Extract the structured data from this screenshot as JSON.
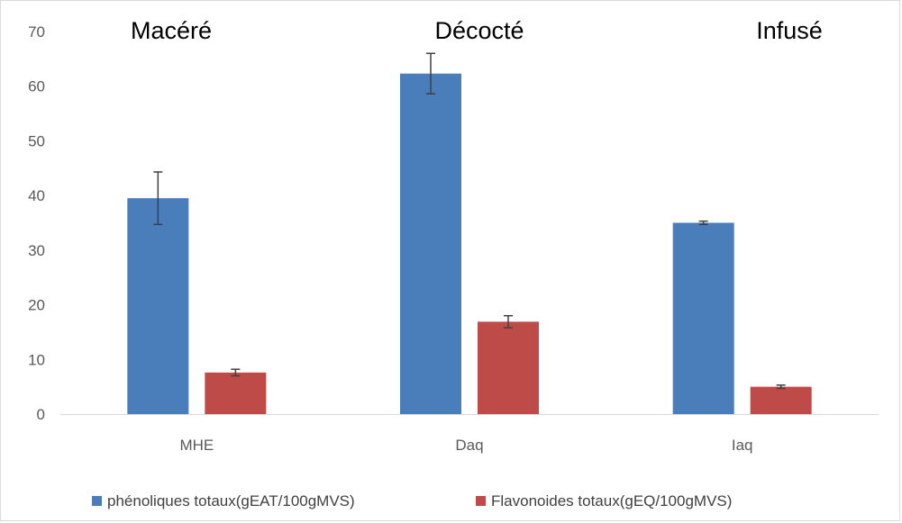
{
  "chart_data": {
    "type": "bar",
    "categories": [
      "MHE",
      "Daq",
      "Iaq"
    ],
    "group_titles": [
      "Macéré",
      "Décocté",
      "Infusé"
    ],
    "series": [
      {
        "name": "phénoliques totaux(gEAT/100gMVS)",
        "color": "#4a7ebb",
        "values": [
          39.5,
          62.3,
          35.0
        ],
        "errors": [
          4.8,
          3.7,
          0.3
        ]
      },
      {
        "name": "Flavonoides  totaux(gEQ/100gMVS)",
        "color": "#be4b48",
        "values": [
          7.6,
          16.9,
          5.0
        ],
        "errors": [
          0.6,
          1.1,
          0.3
        ]
      }
    ],
    "yticks": [
      "0",
      "10",
      "20",
      "30",
      "40",
      "50",
      "60",
      "70"
    ],
    "ylim": [
      0,
      70
    ],
    "grid": false,
    "legend_position": "bottom",
    "xlabel": "",
    "ylabel": ""
  }
}
